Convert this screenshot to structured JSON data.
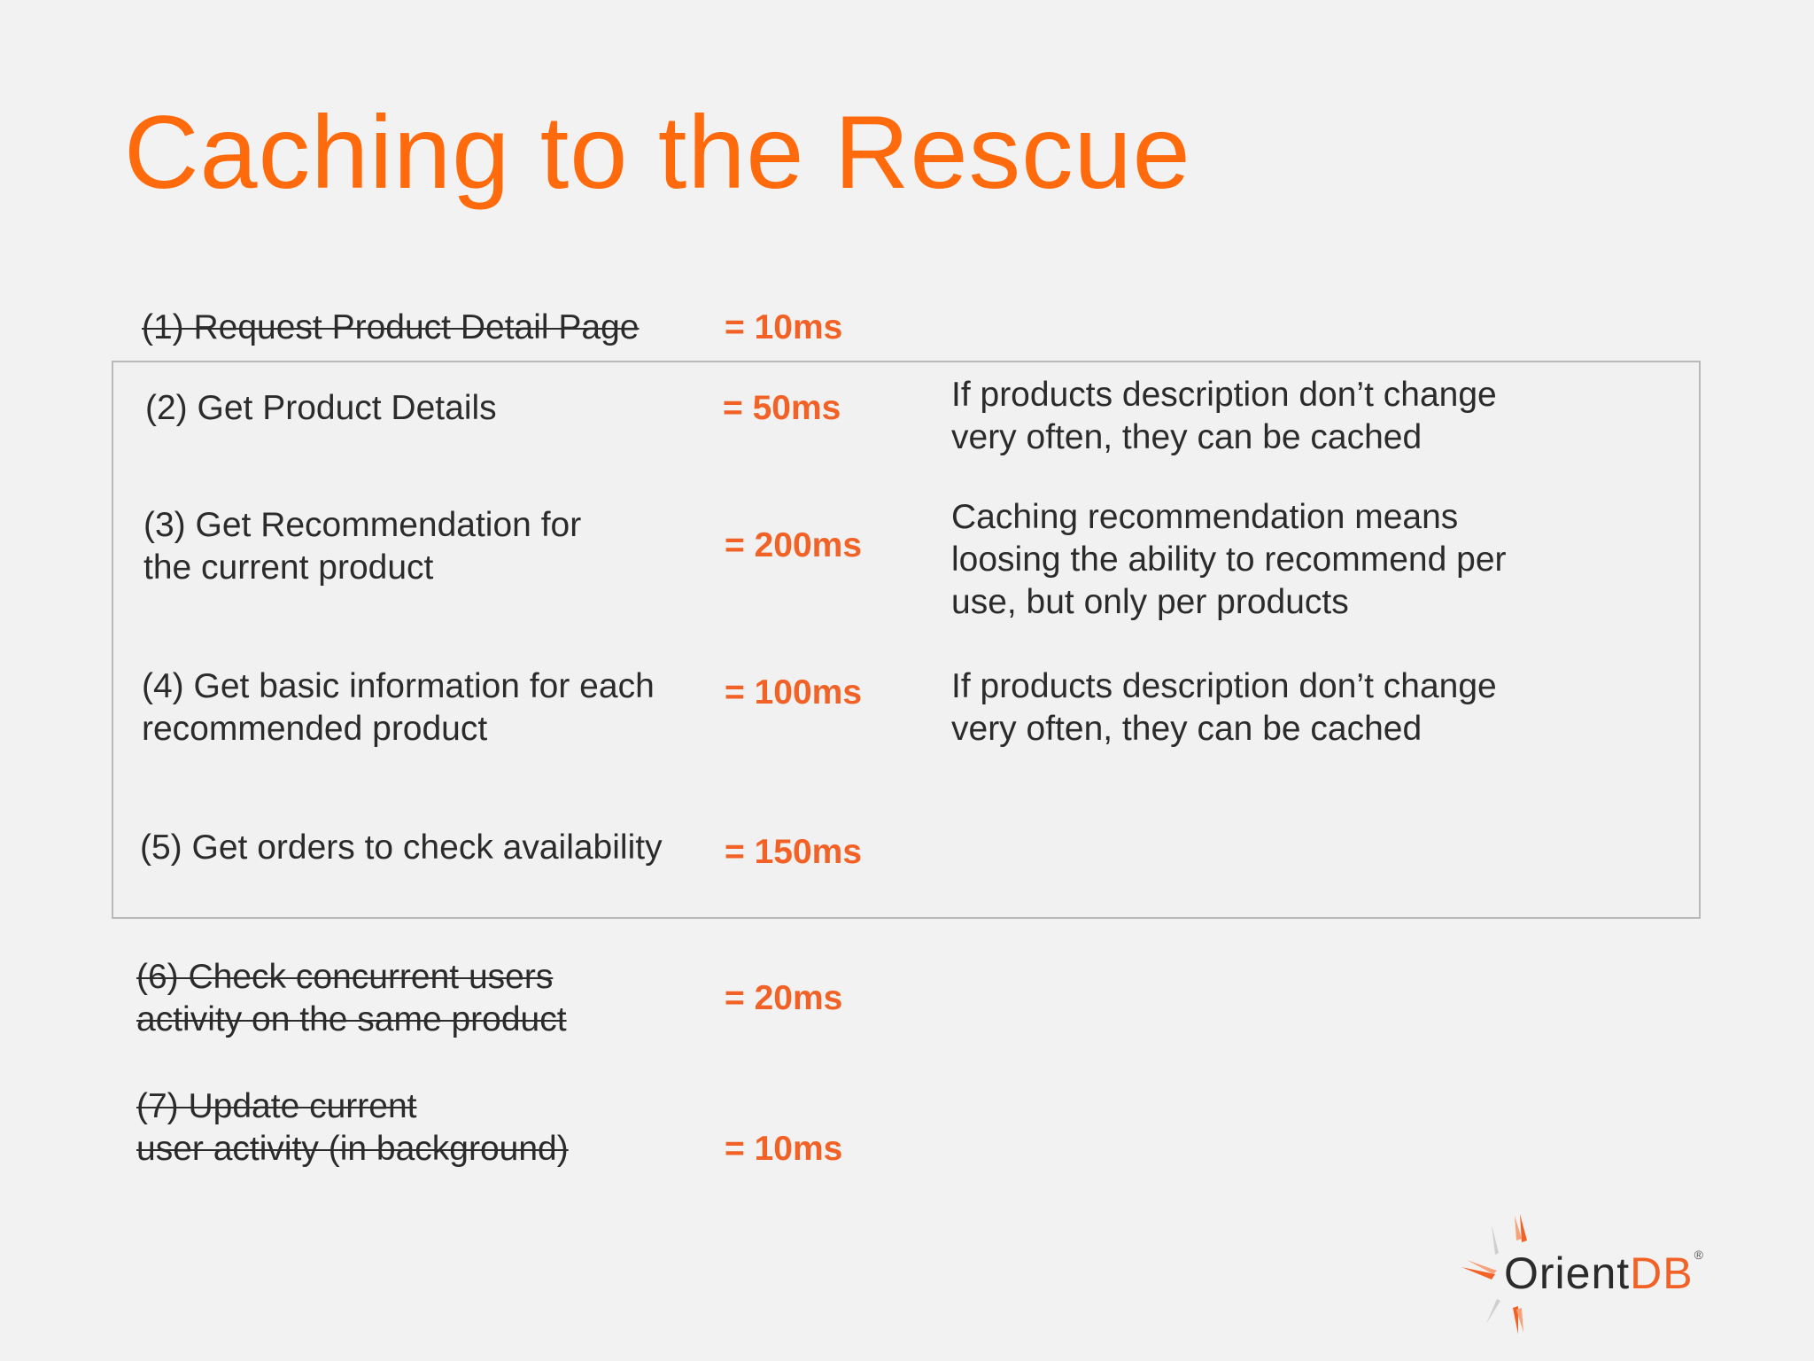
{
  "title": "Caching to the Rescue",
  "steps": [
    {
      "label_lines": [
        "(1) Request Product Detail Page"
      ],
      "time": "= 10ms",
      "struck": true
    },
    {
      "label_lines": [
        "(2) Get Product Details"
      ],
      "time": "= 50ms",
      "struck": false,
      "note_lines": [
        "If products description don’t change",
        "very often, they can be cached"
      ]
    },
    {
      "label_lines": [
        "(3) Get Recommendation for",
        "the current product"
      ],
      "time": "= 200ms",
      "struck": false,
      "note_lines": [
        "Caching recommendation means",
        "loosing the ability to recommend per",
        "use, but only per products"
      ]
    },
    {
      "label_lines": [
        "(4) Get basic information for each",
        "recommended product"
      ],
      "time": "= 100ms",
      "struck": false,
      "note_lines": [
        "If products description don’t change",
        "very often, they can be cached"
      ]
    },
    {
      "label_lines": [
        "(5) Get orders to check availability"
      ],
      "time": "= 150ms",
      "struck": false
    },
    {
      "label_lines": [
        "(6) Check concurrent users",
        "activity on the same product"
      ],
      "time": "= 20ms",
      "struck": true
    },
    {
      "label_lines": [
        "(7) Update current",
        "user activity (in background)"
      ],
      "time": "= 10ms",
      "struck": true
    }
  ],
  "logo": {
    "text_main": "Orient",
    "text_accent": "DB",
    "mark": "®",
    "icon": "orientdb-star-icon"
  },
  "colors": {
    "accent": "#ff6a0d",
    "time": "#f26226",
    "text": "#2b2b2b",
    "background": "#f3f2f2",
    "box_border": "#b9b9b9"
  }
}
